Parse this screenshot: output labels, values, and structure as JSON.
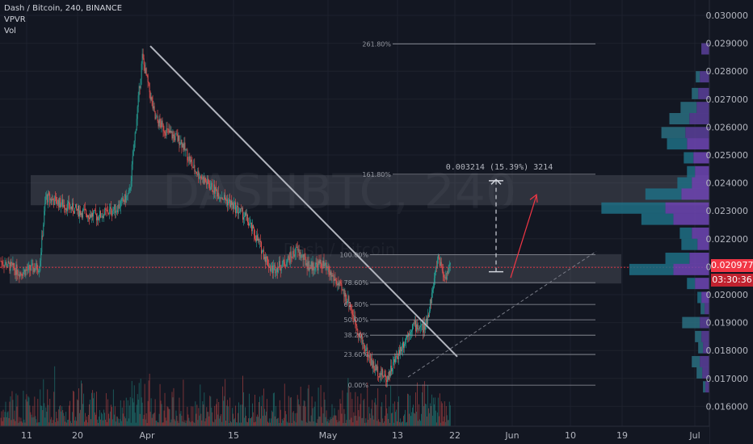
{
  "legend": {
    "title": "Dash / Bitcoin, 240, BINANCE",
    "vpvr": "VPVR",
    "vol": "Vol"
  },
  "watermark": {
    "main": "DASHBTC, 240",
    "sub": "Dash / Bitcoin"
  },
  "colors": {
    "bg": "#131722",
    "up": "#26a69a",
    "down": "#ef5350",
    "grid": "#1e222d",
    "trend": "#b2b5be",
    "vpUp": "#2a6f80",
    "vpDown": "#5b3f9a",
    "vpUpVA": "#1f6e84",
    "vpDownVA": "#6e45b4",
    "price": "#f23645"
  },
  "y_ticks": [
    "0.030000",
    "0.029000",
    "0.028000",
    "0.027000",
    "0.026000",
    "0.025000",
    "0.024000",
    "0.023000",
    "0.022000",
    "0.021000",
    "0.020000",
    "0.019000",
    "0.018000",
    "0.017000",
    "0.016000"
  ],
  "x_ticks": [
    "11",
    "20",
    "Apr",
    "15",
    "May",
    "13",
    "22",
    "Jun",
    "10",
    "19",
    "Jul"
  ],
  "price_badge": {
    "value": "0.020977",
    "countdown": "03:30:36"
  },
  "measure_label": "0.003214 (15.39%) 3214",
  "fib_levels": [
    {
      "label": "261.80%",
      "price": 0.02898
    },
    {
      "label": "161.80%",
      "price": 0.02431
    },
    {
      "label": "100.00%",
      "price": 0.02143
    },
    {
      "label": "78.60%",
      "price": 0.02043
    },
    {
      "label": "61.80%",
      "price": 0.01965
    },
    {
      "label": "50.00%",
      "price": 0.0191
    },
    {
      "label": "38.20%",
      "price": 0.01855
    },
    {
      "label": "23.60%",
      "price": 0.01786
    },
    {
      "label": "0.00%",
      "price": 0.01676
    }
  ],
  "chart_data": {
    "type": "candlestick",
    "title": "Dash / Bitcoin, 240, BINANCE",
    "ylim": [
      0.0155,
      0.0302
    ],
    "x_ticks": [
      "11",
      "20",
      "Apr",
      "15",
      "May",
      "13",
      "22",
      "Jun",
      "10",
      "19",
      "Jul"
    ],
    "current_price": 0.020977,
    "series": [
      {
        "name": "Vol",
        "points": []
      }
    ],
    "price_path": [
      [
        0,
        0.0212
      ],
      [
        3,
        0.0208
      ],
      [
        6,
        0.021
      ],
      [
        7,
        0.0235
      ],
      [
        9,
        0.0233
      ],
      [
        12,
        0.023
      ],
      [
        15,
        0.0228
      ],
      [
        18,
        0.0231
      ],
      [
        20,
        0.0236
      ],
      [
        22,
        0.0285
      ],
      [
        24,
        0.0263
      ],
      [
        26,
        0.0258
      ],
      [
        28,
        0.0255
      ],
      [
        30,
        0.0245
      ],
      [
        32,
        0.024
      ],
      [
        34,
        0.0236
      ],
      [
        36,
        0.0232
      ],
      [
        38,
        0.0228
      ],
      [
        40,
        0.0219
      ],
      [
        42,
        0.0209
      ],
      [
        44,
        0.0211
      ],
      [
        46,
        0.0216
      ],
      [
        48,
        0.021
      ],
      [
        50,
        0.0211
      ],
      [
        52,
        0.0205
      ],
      [
        54,
        0.0198
      ],
      [
        56,
        0.0184
      ],
      [
        58,
        0.0174
      ],
      [
        60,
        0.017
      ],
      [
        62,
        0.018
      ],
      [
        64,
        0.0189
      ],
      [
        66,
        0.0188
      ],
      [
        67,
        0.02
      ],
      [
        68,
        0.0214
      ],
      [
        69,
        0.0206
      ],
      [
        70,
        0.0211
      ]
    ],
    "volume_profile": [
      {
        "price": 0.0288,
        "up": 0.0,
        "down": 0.1
      },
      {
        "price": 0.0278,
        "up": 0.05,
        "down": 0.12
      },
      {
        "price": 0.0272,
        "up": 0.08,
        "down": 0.14
      },
      {
        "price": 0.0267,
        "up": 0.2,
        "down": 0.16
      },
      {
        "price": 0.0263,
        "up": 0.25,
        "down": 0.25
      },
      {
        "price": 0.0258,
        "up": 0.3,
        "down": 0.3
      },
      {
        "price": 0.0254,
        "up": 0.25,
        "down": 0.28
      },
      {
        "price": 0.0249,
        "up": 0.12,
        "down": 0.2
      },
      {
        "price": 0.0244,
        "up": 0.1,
        "down": 0.18
      },
      {
        "price": 0.024,
        "up": 0.18,
        "down": 0.22
      },
      {
        "price": 0.0236,
        "up": 0.45,
        "down": 0.35
      },
      {
        "price": 0.0231,
        "up": 0.8,
        "down": 0.55
      },
      {
        "price": 0.0227,
        "up": 0.4,
        "down": 0.45
      },
      {
        "price": 0.0222,
        "up": 0.15,
        "down": 0.22
      },
      {
        "price": 0.0218,
        "up": 0.2,
        "down": 0.15
      },
      {
        "price": 0.0213,
        "up": 0.3,
        "down": 0.25
      },
      {
        "price": 0.0209,
        "up": 0.55,
        "down": 0.45
      },
      {
        "price": 0.0204,
        "up": 0.1,
        "down": 0.18
      },
      {
        "price": 0.0199,
        "up": 0.05,
        "down": 0.1
      },
      {
        "price": 0.0195,
        "up": 0.05,
        "down": 0.06
      },
      {
        "price": 0.019,
        "up": 0.22,
        "down": 0.12
      },
      {
        "price": 0.0185,
        "up": 0.08,
        "down": 0.1
      },
      {
        "price": 0.0181,
        "up": 0.06,
        "down": 0.08
      },
      {
        "price": 0.0176,
        "up": 0.1,
        "down": 0.12
      },
      {
        "price": 0.0172,
        "up": 0.07,
        "down": 0.09
      },
      {
        "price": 0.0167,
        "up": 0.03,
        "down": 0.05
      }
    ]
  }
}
